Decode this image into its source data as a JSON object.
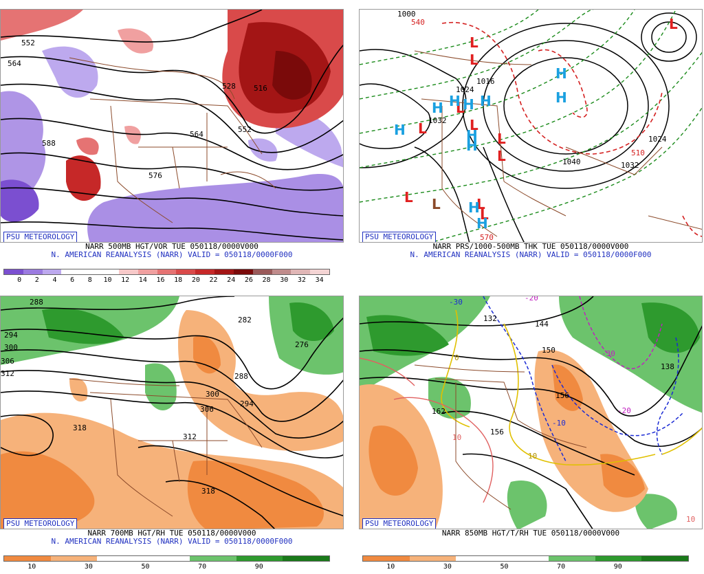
{
  "badge": "PSU METEOROLOGY",
  "panels": [
    {
      "line1": "NARR 500MB HGT/VOR TUE 050118/0000V000",
      "line2": "N. AMERICAN REANALYSIS (NARR) VALID = 050118/0000F000",
      "scale_labels": [
        "0",
        "2",
        "4",
        "6",
        "8",
        "10",
        "12",
        "14",
        "16",
        "18",
        "20",
        "22",
        "24",
        "26",
        "28",
        "30",
        "32",
        "34"
      ],
      "scale_colors": [
        "#7b4fd0",
        "#9b7be0",
        "#bda9ee",
        "#ffffff",
        "#ffffff",
        "#ffffff",
        "#f7c9c9",
        "#f0a0a0",
        "#e57373",
        "#d94a4a",
        "#c62828",
        "#a31515",
        "#7a0a0a",
        "#9a5a5a",
        "#c08c8c",
        "#e0b6b6",
        "#f4d4d4"
      ],
      "contour_labels": [
        "552",
        "564",
        "576",
        "588",
        "552",
        "516",
        "528",
        "564",
        "576"
      ]
    },
    {
      "line1": "NARR PRS/1000-500MB THK TUE 050118/0000V000",
      "line2": "N. AMERICAN REANALYSIS (NARR) VALID = 050118/0000F000",
      "high_label": "H",
      "low_label": "L",
      "contour_labels": [
        "1000",
        "1016",
        "1024",
        "1032",
        "1024",
        "1040",
        "1032",
        "540",
        "570",
        "510",
        "1016"
      ]
    },
    {
      "line1": "NARR 700MB HGT/RH TUE 050118/0000V000",
      "line2": "N. AMERICAN REANALYSIS (NARR) VALID = 050118/0000F000",
      "scale_labels": [
        "10",
        "30",
        "50",
        "70",
        "90"
      ],
      "scale_colors": [
        "#f08a40",
        "#f6b27a",
        "#ffffff",
        "#ffffff",
        "#6cc36c",
        "#2e9a2e",
        "#1a7a1a"
      ],
      "contour_labels": [
        "288",
        "294",
        "300",
        "306",
        "312",
        "282",
        "276",
        "288",
        "294",
        "300",
        "306",
        "312",
        "318",
        "318"
      ]
    },
    {
      "line1": "NARR 850MB HGT/T/RH TUE 050118/0000V000",
      "line2": "",
      "scale_labels": [
        "10",
        "30",
        "50",
        "70",
        "90"
      ],
      "scale_colors": [
        "#f08a40",
        "#f6b27a",
        "#ffffff",
        "#ffffff",
        "#6cc36c",
        "#2e9a2e",
        "#1a7a1a"
      ],
      "contour_labels": [
        "-30",
        "-20",
        "132",
        "144",
        "150",
        "138",
        "156",
        "162",
        "156",
        "-30",
        "-20",
        "-10",
        "0",
        "10",
        "10",
        "10"
      ]
    }
  ]
}
